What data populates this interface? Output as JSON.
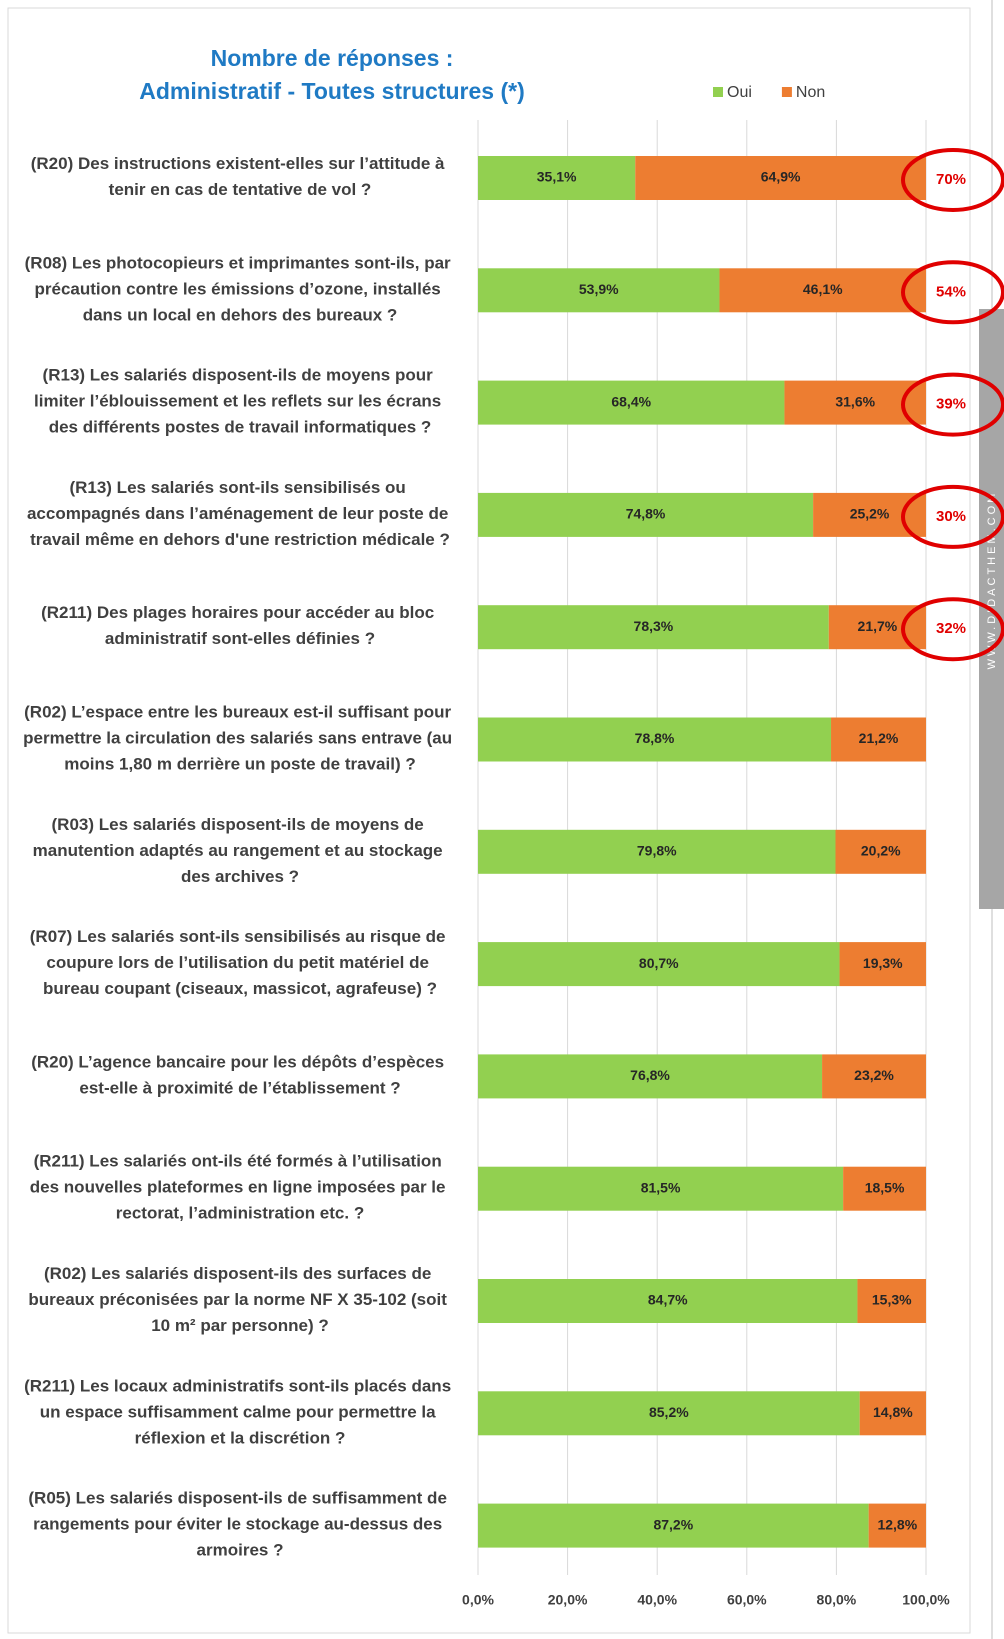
{
  "chart_data": {
    "type": "stacked_barh",
    "title": [
      "Nombre de réponses :",
      "Administratif - Toutes structures (*)"
    ],
    "categories": [
      "(R20) Des instructions existent-elles sur l’attitude à tenir en cas de tentative de vol ?",
      "(R08) Les photocopieurs et imprimantes sont-ils, par précaution contre les émissions d’ozone, installés dans un local en dehors des bureaux ?",
      "(R13) Les salariés disposent-ils de moyens pour limiter l’éblouissement et les reflets sur les écrans des différents postes de travail informatiques ?",
      "(R13) Les salariés sont-ils sensibilisés ou accompagnés dans l’aménagement de leur poste de travail même en dehors d'une restriction médicale ?",
      "(R211) Des plages horaires pour accéder au bloc administratif sont-elles définies ?",
      "(R02) L’espace entre les bureaux est-il suffisant pour permettre la circulation des salariés sans entrave (au moins 1,80 m derrière un poste de travail) ?",
      "(R03) Les salariés disposent-ils de moyens de manutention adaptés au rangement et au stockage des archives ?",
      "(R07) Les salariés sont-ils sensibilisés au risque de coupure lors de l’utilisation du petit matériel de bureau coupant (ciseaux, massicot, agrafeuse) ?",
      "(R20) L’agence bancaire pour les dépôts d’espèces est-elle à proximité de l’établissement ?",
      "(R211) Les salariés ont-ils été formés à l’utilisation des nouvelles plateformes en ligne imposées par le rectorat, l’administration etc. ?",
      "(R02) Les salariés disposent-ils des surfaces de bureaux préconisées par la norme NF X 35-102 (soit 10 m² par personne) ?",
      "(R211) Les locaux administratifs sont-ils placés dans un espace suffisamment calme pour permettre la réflexion et la discrétion ?",
      "(R05) Les salariés disposent-ils de suffisamment de rangements pour éviter le stockage au-dessus des armoires ?"
    ],
    "series": [
      {
        "name": "Oui",
        "color": "#92d050",
        "values": [
          35.1,
          53.9,
          68.4,
          74.8,
          78.3,
          78.8,
          79.8,
          80.7,
          76.8,
          81.5,
          84.7,
          85.2,
          87.2
        ],
        "value_labels": [
          "35,1%",
          "53,9%",
          "68,4%",
          "74,8%",
          "78,3%",
          "78,8%",
          "79,8%",
          "80,7%",
          "76,8%",
          "81,5%",
          "84,7%",
          "85,2%",
          "87,2%"
        ]
      },
      {
        "name": "Non",
        "color": "#ed7d31",
        "values": [
          64.9,
          46.1,
          31.6,
          25.2,
          21.7,
          21.2,
          20.2,
          19.3,
          23.2,
          18.5,
          15.3,
          14.8,
          12.8
        ],
        "value_labels": [
          "64,9%",
          "46,1%",
          "31,6%",
          "25,2%",
          "21,7%",
          "21,2%",
          "20,2%",
          "19,3%",
          "23,2%",
          "18,5%",
          "15,3%",
          "14,8%",
          "12,8%"
        ]
      }
    ],
    "xlim": [
      0,
      100
    ],
    "xticks": [
      {
        "value": 0,
        "label": "0,0%"
      },
      {
        "value": 20,
        "label": "20,0%"
      },
      {
        "value": 40,
        "label": "40,0%"
      },
      {
        "value": 60,
        "label": "60,0%"
      },
      {
        "value": 80,
        "label": "80,0%"
      },
      {
        "value": 100,
        "label": "100,0%"
      }
    ],
    "grid": true,
    "legend": "top-right",
    "annotations": [
      "70%",
      "54%",
      "39%",
      "30%",
      "32%"
    ],
    "annotation_color": "#e00000",
    "watermark": "WWW.DIDACTHEM.COM"
  }
}
